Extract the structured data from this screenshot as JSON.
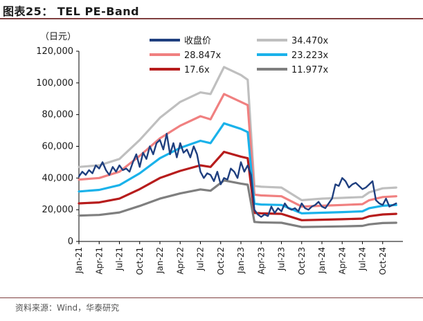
{
  "title": "图表25： TEL PE-Band",
  "source": "资料来源：Wind，华泰研究",
  "chart_data": {
    "type": "line",
    "title": "TEL PE-Band",
    "ylabel": "（日元）",
    "ylim": [
      0,
      120000
    ],
    "yticks": [
      0,
      20000,
      40000,
      60000,
      80000,
      100000,
      120000
    ],
    "ytick_labels": [
      "0",
      "20,000",
      "40,000",
      "60,000",
      "80,000",
      "100,000",
      "120,000"
    ],
    "xlim": [
      0,
      48
    ],
    "xtick_labels": [
      "Jan-21",
      "Apr-21",
      "Jul-21",
      "Oct-21",
      "Jan-22",
      "Apr-22",
      "Jul-22",
      "Oct-22",
      "Jan-23",
      "Apr-23",
      "Jul-23",
      "Oct-23",
      "Jan-24",
      "Apr-24",
      "Jul-24",
      "Oct-24"
    ],
    "xticks": [
      0,
      3,
      6,
      9,
      12,
      15,
      18,
      21,
      24,
      27,
      30,
      33,
      36,
      39,
      42,
      45
    ],
    "legend_position": "top",
    "band_x": [
      0,
      3,
      6,
      9,
      12,
      15,
      18,
      19.5,
      21.5,
      24,
      25,
      26,
      27,
      30,
      33,
      36,
      39,
      42,
      43,
      45,
      47
    ],
    "series": [
      {
        "name": "收盘价",
        "color": "#1f3f7f",
        "width": 2.4,
        "x": [
          0,
          0.5,
          1,
          1.5,
          2,
          2.5,
          3,
          3.5,
          4,
          4.5,
          5,
          5.5,
          6,
          6.5,
          7,
          7.5,
          8,
          8.5,
          9,
          9.5,
          10,
          10.5,
          11,
          11.5,
          12,
          12.5,
          13,
          13.5,
          14,
          14.5,
          15,
          15.5,
          16,
          16.5,
          17,
          17.5,
          18,
          18.5,
          19,
          19.5,
          20,
          20.5,
          21,
          21.5,
          22,
          22.5,
          23,
          23.5,
          24,
          24.5,
          25,
          25.5,
          26,
          26.5,
          27,
          27.5,
          28,
          28.5,
          29,
          29.5,
          30,
          30.5,
          31,
          31.5,
          32,
          32.5,
          33,
          33.5,
          34,
          34.5,
          35,
          35.5,
          36,
          36.5,
          37,
          37.5,
          38,
          38.5,
          39,
          39.5,
          40,
          40.5,
          41,
          41.5,
          42,
          42.5,
          43,
          43.5,
          44,
          44.5,
          45,
          45.5,
          46,
          46.5,
          47
        ],
        "values": [
          41000,
          44000,
          42000,
          45000,
          43000,
          48000,
          46000,
          50000,
          45000,
          42000,
          47000,
          44000,
          48000,
          45000,
          46000,
          44000,
          50000,
          55000,
          47000,
          56000,
          52000,
          60000,
          55000,
          62000,
          64000,
          58000,
          68000,
          55000,
          62000,
          53000,
          62000,
          56000,
          58000,
          53000,
          60000,
          55000,
          44000,
          40000,
          43000,
          42000,
          38000,
          44000,
          36000,
          40000,
          39000,
          46000,
          44000,
          40000,
          50000,
          44000,
          48000,
          42000,
          20000,
          17000,
          15500,
          17000,
          16000,
          22000,
          18000,
          21000,
          19000,
          24000,
          21000,
          20000,
          21000,
          19000,
          24000,
          21000,
          20000,
          22000,
          23000,
          25000,
          22000,
          21000,
          24000,
          27000,
          36000,
          35000,
          40000,
          38000,
          34000,
          36000,
          37000,
          35000,
          33000,
          34000,
          36000,
          38000,
          26000,
          24000,
          23000,
          27000,
          22000,
          23000,
          24000
        ]
      },
      {
        "name": "34.470x",
        "color": "#bfbfbf",
        "width": 3.2,
        "values": [
          47000,
          48000,
          52000,
          64000,
          78000,
          88000,
          94000,
          93000,
          110000,
          105000,
          102000,
          35000,
          34500,
          34000,
          26000,
          27000,
          27500,
          28000,
          31000,
          33500,
          34000
        ]
      },
      {
        "name": "28.847x",
        "color": "#f08080",
        "width": 3.2,
        "values": [
          39000,
          40000,
          44000,
          54000,
          65000,
          73000,
          79000,
          77000,
          93000,
          88000,
          86000,
          29500,
          29000,
          28500,
          22000,
          22500,
          23000,
          23500,
          26000,
          28000,
          28500
        ]
      },
      {
        "name": "23.223x",
        "color": "#1ab2ea",
        "width": 3.2,
        "values": [
          31500,
          32500,
          35500,
          43000,
          52500,
          59000,
          63500,
          62000,
          74500,
          71000,
          69000,
          23800,
          23300,
          23000,
          17700,
          18100,
          18500,
          19000,
          21000,
          22500,
          23000
        ]
      },
      {
        "name": "17.6x",
        "color": "#b71c1c",
        "width": 3.2,
        "values": [
          24000,
          24600,
          27000,
          33000,
          40000,
          44500,
          48000,
          47000,
          56500,
          53500,
          52500,
          18000,
          17700,
          17400,
          13400,
          13700,
          14000,
          14400,
          15900,
          17000,
          17400
        ]
      },
      {
        "name": "11.977x",
        "color": "#7f7f7f",
        "width": 3.2,
        "values": [
          16300,
          16700,
          18300,
          22400,
          27000,
          30300,
          32800,
          32000,
          38500,
          36500,
          35800,
          12300,
          12000,
          11800,
          9100,
          9300,
          9500,
          9800,
          10800,
          11600,
          11800
        ]
      }
    ]
  }
}
